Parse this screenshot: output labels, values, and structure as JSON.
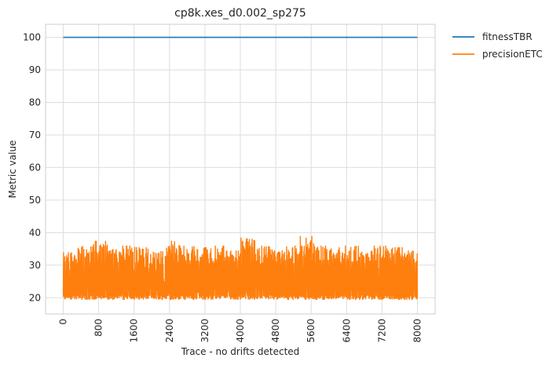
{
  "chart_data": {
    "type": "line",
    "title": "cp8k.xes_d0.002_sp275",
    "xlabel": "Trace - no drifts detected",
    "ylabel": "Metric value",
    "xlim": [
      -400,
      8400
    ],
    "ylim": [
      15,
      104
    ],
    "x_ticks": [
      0,
      800,
      1600,
      2400,
      3200,
      4000,
      4800,
      5600,
      6400,
      7200,
      8000
    ],
    "y_ticks": [
      20,
      30,
      40,
      50,
      60,
      70,
      80,
      90,
      100
    ],
    "grid": true,
    "legend_placement": "outside-top-right",
    "series": [
      {
        "name": "fitnessTBR",
        "color": "#1f77b4",
        "x": [
          0,
          8000
        ],
        "values": [
          100,
          100
        ]
      },
      {
        "name": "precisionETC",
        "color": "#ff7f0e",
        "x_range": [
          0,
          8000
        ],
        "band_min": 19.3,
        "band_max": 39.0,
        "typical_peaks": [
          34,
          36,
          37.5,
          35,
          36,
          35.5,
          34.5,
          37.5,
          36,
          35.5,
          36,
          34.5,
          38.5,
          36,
          35,
          36,
          39,
          36,
          35.5,
          36,
          34.5,
          36,
          35.5,
          34.5
        ]
      }
    ]
  }
}
